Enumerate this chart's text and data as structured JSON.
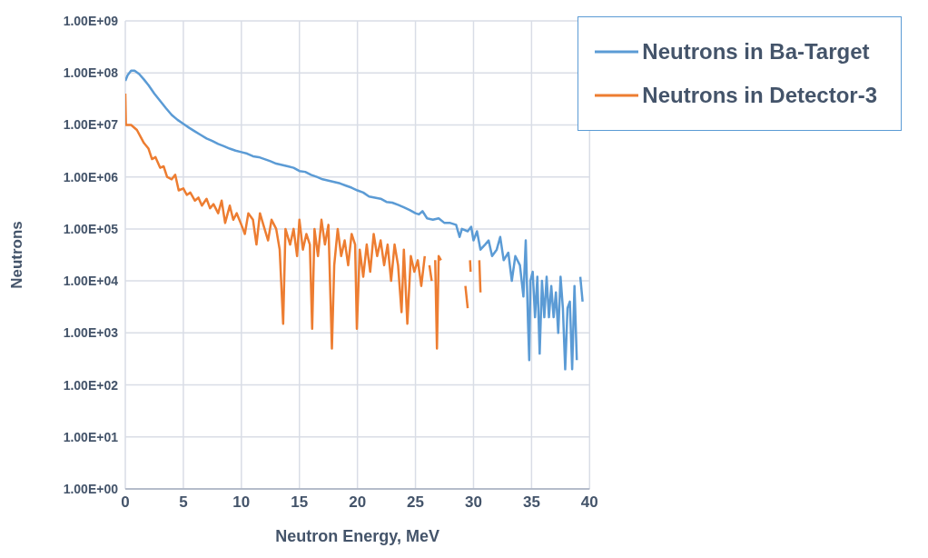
{
  "chart_data": {
    "type": "line",
    "xlabel": "Neutron Energy, MeV",
    "ylabel": "Neutrons",
    "log": "y",
    "grid": true,
    "legend": "top right",
    "marker": "none",
    "line_style": "solid",
    "xlim": [
      0,
      40
    ],
    "xticks": [
      0,
      5,
      10,
      15,
      20,
      25,
      30,
      35,
      40
    ],
    "ylim": [
      1,
      1000000000
    ],
    "yticks": [
      {
        "value": 1,
        "label": "1.00E+00"
      },
      {
        "value": 10,
        "label": "1.00E+01"
      },
      {
        "value": 100,
        "label": "1.00E+02"
      },
      {
        "value": 1000,
        "label": "1.00E+03"
      },
      {
        "value": 10000,
        "label": "1.00E+04"
      },
      {
        "value": 100000,
        "label": "1.00E+05"
      },
      {
        "value": 1000000,
        "label": "1.00E+06"
      },
      {
        "value": 10000000,
        "label": "1.00E+07"
      },
      {
        "value": 100000000,
        "label": "1.00E+08"
      },
      {
        "value": 1000000000,
        "label": "1.00E+09"
      }
    ],
    "series": [
      {
        "name": "Neutrons in Ba-Target",
        "color": "#5b9bd5",
        "x": [
          0,
          0.2,
          0.5,
          0.8,
          1.2,
          1.6,
          2,
          2.5,
          3,
          3.5,
          4,
          4.5,
          5,
          5.5,
          6,
          6.5,
          7,
          7.5,
          8,
          8.5,
          9,
          9.5,
          10,
          10.5,
          11,
          11.5,
          12,
          12.5,
          13,
          13.5,
          14,
          14.5,
          15,
          15.5,
          16,
          16.5,
          17,
          17.5,
          18,
          18.5,
          19,
          19.5,
          20,
          20.5,
          21,
          21.5,
          22,
          22.5,
          23,
          23.5,
          24,
          24.5,
          25,
          25.3,
          25.6,
          26,
          26.5,
          27,
          27.5,
          28,
          28.5,
          28.8,
          29,
          29.5,
          29.8,
          30,
          30.3,
          30.6,
          31,
          31.3,
          31.6,
          32,
          32.3,
          32.6,
          33,
          33.3,
          33.6,
          34,
          34.3,
          34.5,
          34.7,
          34.8,
          34.9,
          35.1,
          35.3,
          35.5,
          35.7,
          35.9,
          36.1,
          36.3,
          36.5,
          36.7,
          36.9,
          37.1,
          37.3,
          37.5,
          37.7,
          37.9,
          38.1,
          38.3,
          38.5,
          38.7,
          38.9,
          39.05,
          39.2,
          39.4
        ],
        "values": [
          70000000,
          90000000,
          110000000,
          110000000,
          95000000,
          75000000,
          58000000,
          40000000,
          29000000,
          21000000,
          15500000,
          12500000,
          10500000,
          8800000,
          7500000,
          6400000,
          5500000,
          4900000,
          4300000,
          3900000,
          3500000,
          3200000,
          3000000,
          2800000,
          2500000,
          2400000,
          2200000,
          2000000,
          1800000,
          1700000,
          1600000,
          1500000,
          1300000,
          1250000,
          1100000,
          1000000,
          900000,
          850000,
          800000,
          750000,
          680000,
          620000,
          550000,
          500000,
          420000,
          400000,
          380000,
          330000,
          320000,
          290000,
          260000,
          230000,
          200000,
          190000,
          220000,
          160000,
          150000,
          160000,
          130000,
          130000,
          120000,
          70000,
          100000,
          90000,
          110000,
          60000,
          90000,
          40000,
          50000,
          60000,
          30000,
          40000,
          70000,
          25000,
          35000,
          10000,
          30000,
          20000,
          5000,
          60000,
          1500,
          300,
          10000,
          15000,
          2000,
          12000,
          400,
          10000,
          2000,
          12000,
          2000,
          8000,
          2000,
          6000,
          1000,
          12000,
          3000,
          200,
          3000,
          4000,
          200,
          8000,
          300,
          null,
          12000,
          4000
        ]
      },
      {
        "name": "Neutrons in Detector-3",
        "color": "#ed7d31",
        "x": [
          0,
          0.05,
          0.5,
          1,
          1.3,
          1.6,
          2,
          2.3,
          2.6,
          3,
          3.3,
          3.6,
          4,
          4.3,
          4.6,
          5,
          5.3,
          5.6,
          6,
          6.3,
          6.6,
          7,
          7.3,
          7.6,
          8,
          8.3,
          8.6,
          9,
          9.3,
          9.6,
          10,
          10.3,
          10.6,
          11,
          11.3,
          11.6,
          12,
          12.3,
          12.6,
          13,
          13.3,
          13.6,
          13.8,
          14.2,
          14.5,
          14.8,
          15,
          15.3,
          15.6,
          15.9,
          16.1,
          16.3,
          16.6,
          16.9,
          17.2,
          17.5,
          17.8,
          18,
          18.3,
          18.6,
          18.9,
          19.2,
          19.5,
          19.8,
          19.95,
          20.2,
          20.5,
          20.8,
          21.1,
          21.4,
          21.7,
          22,
          22.3,
          22.6,
          22.9,
          23.2,
          23.5,
          23.8,
          24,
          24.3,
          24.6,
          24.9,
          25.2,
          25.5,
          25.8,
          26,
          26.2,
          26.4,
          26.6,
          26.7,
          26.85,
          27,
          27.2,
          27.3,
          29.3,
          29.5,
          29.6,
          29.7,
          29.75,
          29.8,
          30.5,
          30.6
        ],
        "values": [
          40000000,
          10000000,
          10000000,
          8000000,
          6000000,
          4500000,
          3500000,
          2200000,
          2400000,
          1500000,
          1600000,
          1000000,
          900000,
          1100000,
          550000,
          600000,
          450000,
          500000,
          350000,
          400000,
          280000,
          380000,
          250000,
          300000,
          200000,
          350000,
          130000,
          280000,
          150000,
          200000,
          120000,
          80000,
          200000,
          150000,
          50000,
          200000,
          100000,
          60000,
          150000,
          100000,
          40000,
          1500,
          100000,
          50000,
          100000,
          30000,
          150000,
          40000,
          80000,
          50000,
          1200,
          100000,
          30000,
          150000,
          50000,
          120000,
          500,
          20000,
          100000,
          30000,
          60000,
          20000,
          80000,
          50000,
          1200,
          40000,
          12000,
          50000,
          15000,
          80000,
          30000,
          60000,
          20000,
          50000,
          10000,
          50000,
          20000,
          2500,
          40000,
          1500,
          30000,
          15000,
          25000,
          8000,
          30000,
          null,
          20000,
          10000,
          null,
          25000,
          500,
          30000,
          25000,
          null,
          8000,
          3000,
          null,
          25000,
          15000,
          null,
          25000,
          6000
        ]
      }
    ]
  }
}
